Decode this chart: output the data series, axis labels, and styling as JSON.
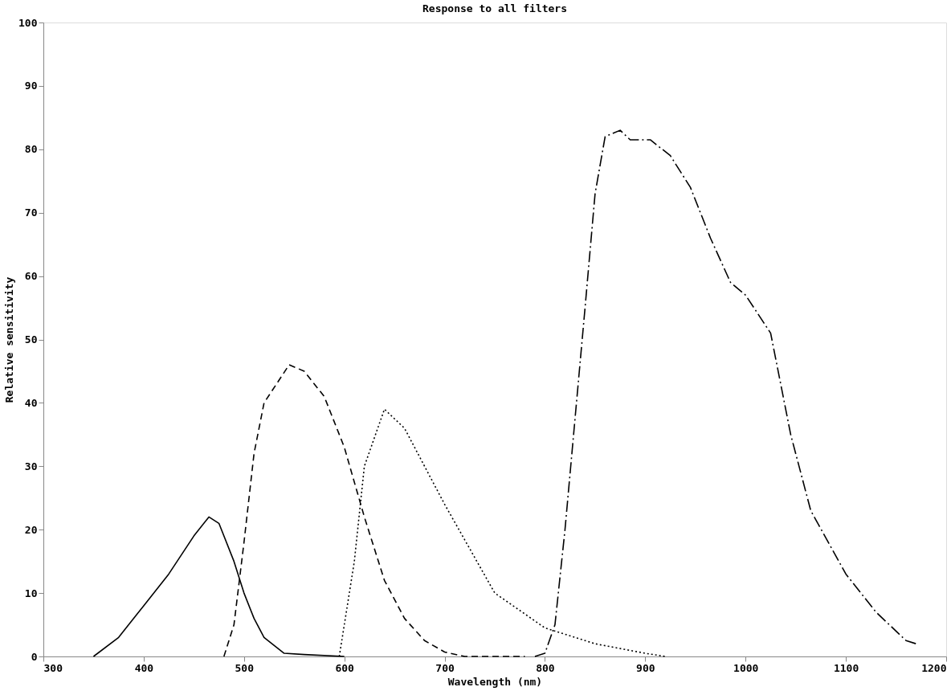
{
  "chart_data": {
    "type": "line",
    "title": "Response to all filters",
    "xlabel": "Wavelength (nm)",
    "ylabel": "Relative sensitivity",
    "xlim": [
      300,
      1200
    ],
    "ylim": [
      0,
      100
    ],
    "xticks": [
      300,
      400,
      500,
      600,
      700,
      800,
      900,
      1000,
      1100,
      1200
    ],
    "yticks": [
      0,
      10,
      20,
      30,
      40,
      50,
      60,
      70,
      80,
      90,
      100
    ],
    "grid": false,
    "marker": "none",
    "series": [
      {
        "color": "#000000",
        "line_style": "solid",
        "x": [
          350,
          375,
          400,
          425,
          450,
          465,
          475,
          490,
          500,
          510,
          520,
          540,
          560,
          600
        ],
        "values": [
          0,
          3,
          8,
          13,
          19,
          22,
          21,
          15,
          10,
          6,
          3,
          0.5,
          0.3,
          0
        ]
      },
      {
        "color": "#000000",
        "line_style": "dashed",
        "x": [
          480,
          490,
          500,
          510,
          520,
          545,
          560,
          580,
          600,
          620,
          640,
          660,
          680,
          700,
          720,
          780
        ],
        "values": [
          0,
          5,
          18,
          32,
          40,
          46,
          45,
          41,
          33,
          22,
          12,
          6,
          2.5,
          0.7,
          0,
          0
        ]
      },
      {
        "color": "#000000",
        "line_style": "dotted",
        "x": [
          595,
          610,
          620,
          640,
          660,
          700,
          750,
          800,
          850,
          900,
          920
        ],
        "values": [
          0,
          15,
          30,
          39,
          36,
          24,
          10,
          4.5,
          2,
          0.5,
          0
        ]
      },
      {
        "color": "#000000",
        "line_style": "dashdot",
        "x": [
          790,
          800,
          810,
          820,
          840,
          850,
          860,
          875,
          885,
          905,
          925,
          945,
          965,
          985,
          1000,
          1025,
          1045,
          1065,
          1100,
          1130,
          1160,
          1170
        ],
        "values": [
          0,
          0.5,
          5,
          20,
          55,
          73,
          82,
          83,
          81.5,
          81.5,
          79,
          74,
          66,
          59,
          57,
          51,
          35,
          23,
          13,
          7,
          2.5,
          2
        ]
      }
    ]
  }
}
